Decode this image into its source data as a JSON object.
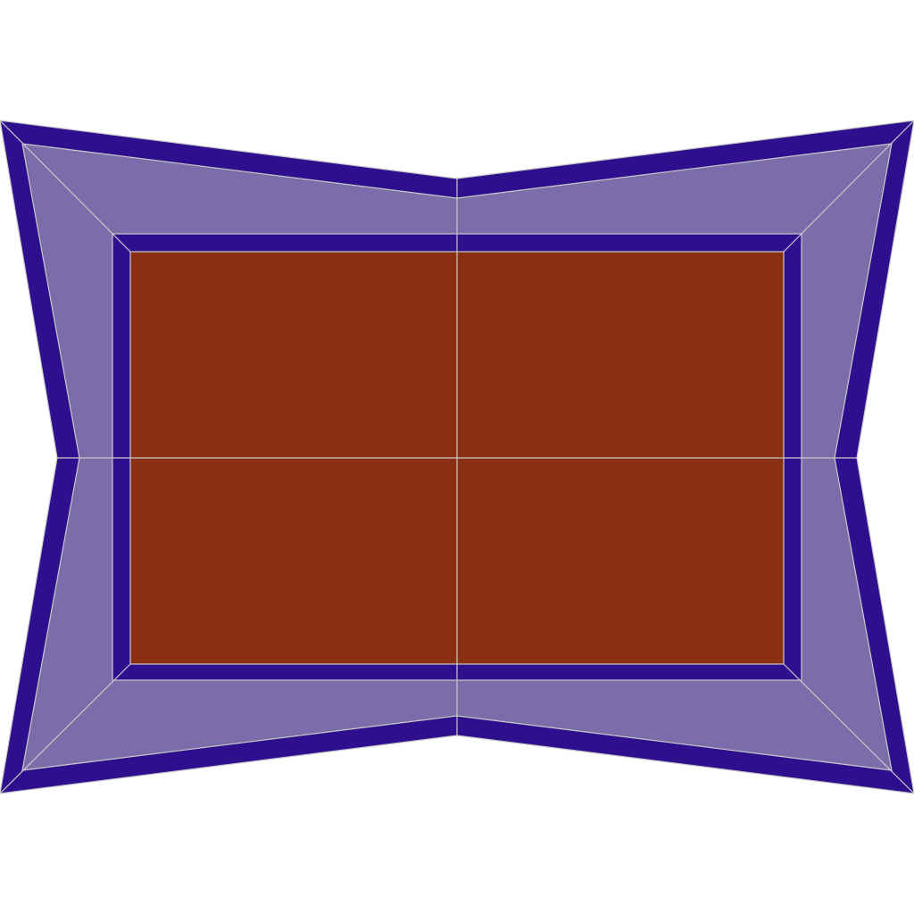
{
  "figure": {
    "type": "tiled-frame-pattern",
    "tiles": {
      "columns": 2,
      "rows": 2
    },
    "layers": [
      {
        "name": "outer-border-band",
        "color": "#2e0f8d"
      },
      {
        "name": "light-frame-band",
        "color": "#7a6da9"
      },
      {
        "name": "inner-border-band",
        "color": "#2e0f8d"
      },
      {
        "name": "center-panel",
        "color": "#8b2f14"
      }
    ],
    "seam_color": "#c9c9c9",
    "background": "#ffffff"
  }
}
